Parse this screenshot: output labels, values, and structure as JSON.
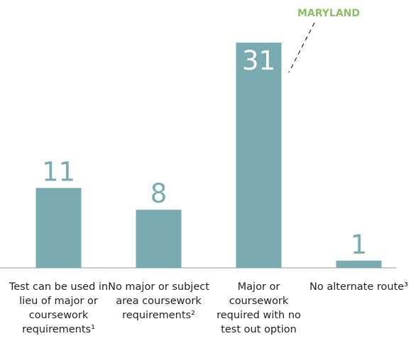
{
  "chart_data": {
    "type": "bar",
    "categories": [
      "Test can be used in lieu of major or coursework requirements¹",
      "No major or subject area coursework requirements²",
      "Major or coursework required with no test out option",
      "No alternate route³"
    ],
    "values": [
      11,
      8,
      31,
      1
    ],
    "color": "#7aabb1",
    "annotation": "MARYLAND"
  }
}
